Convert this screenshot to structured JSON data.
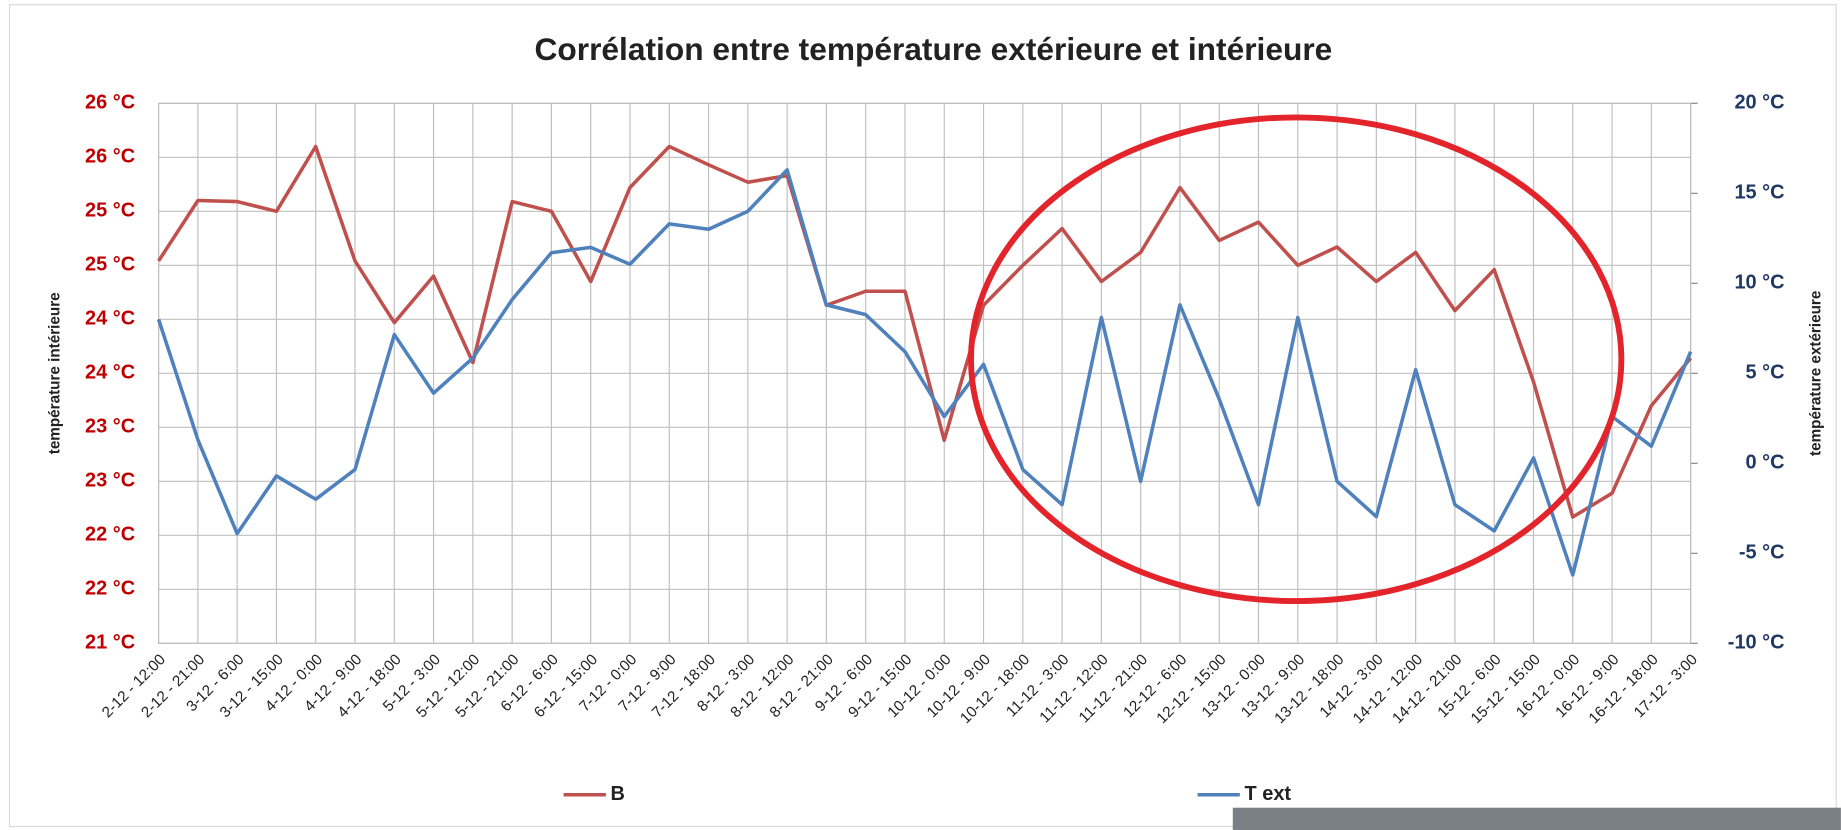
{
  "chart_data": {
    "type": "line",
    "title": "Corrélation entre température extérieure et intérieure",
    "ylabel": "température intérieure",
    "y2label": "température extérieure",
    "categories": [
      "2-12 - 12:00",
      "2-12 - 21:00",
      "3-12 - 6:00",
      "3-12 - 15:00",
      "4-12 - 0:00",
      "4-12 - 9:00",
      "4-12 - 18:00",
      "5-12 - 3:00",
      "5-12 - 12:00",
      "5-12 - 21:00",
      "6-12 - 6:00",
      "6-12 - 15:00",
      "7-12 - 0:00",
      "7-12 - 9:00",
      "7-12 - 18:00",
      "8-12 - 3:00",
      "8-12 - 12:00",
      "8-12 - 21:00",
      "9-12 - 6:00",
      "9-12 - 15:00",
      "10-12 - 0:00",
      "10-12 - 9:00",
      "10-12 - 18:00",
      "11-12 - 3:00",
      "11-12 - 12:00",
      "11-12 - 21:00",
      "12-12 - 6:00",
      "12-12 - 15:00",
      "13-12 - 0:00",
      "13-12 - 9:00",
      "13-12 - 18:00",
      "14-12 - 3:00",
      "14-12 - 12:00",
      "14-12 - 21:00",
      "15-12 - 6:00",
      "15-12 - 15:00",
      "16-12 - 0:00",
      "16-12 - 9:00",
      "16-12 - 18:00",
      "17-12 - 3:00"
    ],
    "series": [
      {
        "name": "B",
        "color": "#c0504d",
        "values": [
          24.54,
          25.1,
          25.09,
          25.0,
          25.6,
          24.54,
          23.97,
          24.4,
          23.6,
          25.09,
          25.0,
          24.35,
          25.22,
          25.6,
          25.43,
          25.27,
          25.33,
          24.13,
          24.26,
          24.26,
          22.88,
          24.13,
          24.5,
          24.84,
          24.35,
          24.62,
          25.22,
          24.73,
          24.9,
          24.5,
          24.67,
          24.35,
          24.62,
          24.08,
          24.46,
          23.42,
          22.17,
          22.39,
          23.2,
          23.64
        ]
      },
      {
        "name": "T ext",
        "color": "#4f81bd",
        "axis": "y2",
        "values": [
          8,
          1.3,
          -3.9,
          -0.7,
          -2.0,
          -0.35,
          7.15,
          3.9,
          5.85,
          9.1,
          11.7,
          12.0,
          11.06,
          13.3,
          13.0,
          14.0,
          16.3,
          8.8,
          8.26,
          6.2,
          2.6,
          5.5,
          -0.35,
          -2.3,
          8.1,
          -1.0,
          8.8,
          3.56,
          -2.3,
          8.1,
          -1.0,
          -2.96,
          5.2,
          -2.3,
          -3.75,
          0.3,
          -6.2,
          2.6,
          0.95,
          6.2
        ]
      }
    ],
    "ylim": [
      21,
      26
    ],
    "yticks": [
      {
        "value": 21,
        "label": "21 °C"
      },
      {
        "value": 21.5,
        "label": "22 °C"
      },
      {
        "value": 22,
        "label": "22 °C"
      },
      {
        "value": 22.5,
        "label": "23 °C"
      },
      {
        "value": 23,
        "label": "23 °C"
      },
      {
        "value": 23.5,
        "label": "24 °C"
      },
      {
        "value": 24,
        "label": "24 °C"
      },
      {
        "value": 24.5,
        "label": "25 °C"
      },
      {
        "value": 25,
        "label": "25 °C"
      },
      {
        "value": 25.5,
        "label": "26 °C"
      },
      {
        "value": 26,
        "label": "26 °C"
      }
    ],
    "y2lim": [
      -10,
      20
    ],
    "y2ticks": [
      {
        "value": -10,
        "label": "-10 °C"
      },
      {
        "value": -5,
        "label": "-5 °C"
      },
      {
        "value": 0,
        "label": "0 °C"
      },
      {
        "value": 5,
        "label": "5 °C"
      },
      {
        "value": 10,
        "label": "10 °C"
      },
      {
        "value": 15,
        "label": "15 °C"
      },
      {
        "value": 20,
        "label": "20 °C"
      }
    ],
    "grid": true,
    "legend": "bottom"
  }
}
